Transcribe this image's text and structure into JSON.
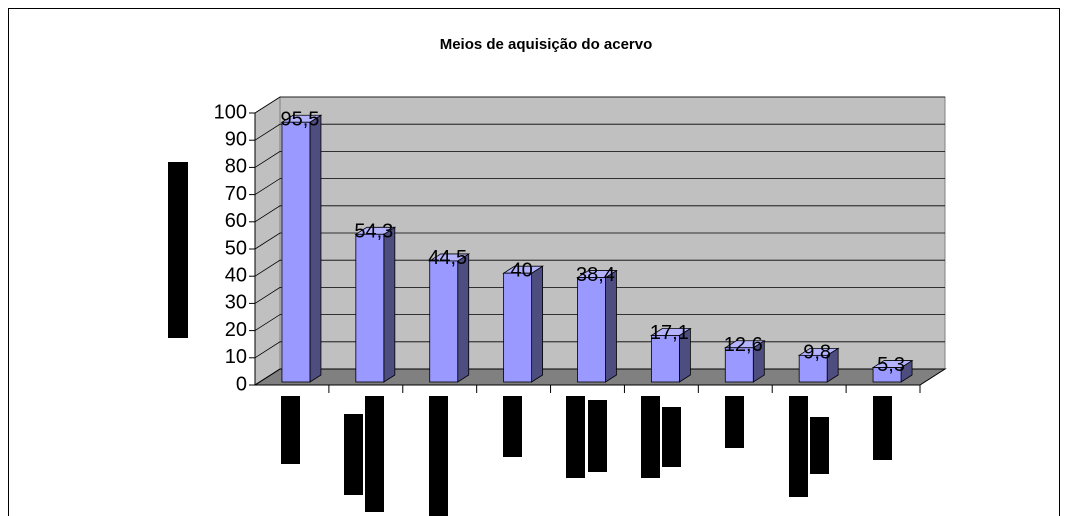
{
  "chart_data": {
    "type": "bar3d",
    "title": "Meios de aquisição do acervo",
    "categories": [
      null,
      null,
      null,
      null,
      null,
      null,
      null,
      null,
      null
    ],
    "values": [
      95.5,
      54.3,
      44.5,
      40,
      38.4,
      17.1,
      12.6,
      9.8,
      5.3
    ],
    "value_labels": [
      "95,5",
      "54,3",
      "44,5",
      "40",
      "38,4",
      "17,1",
      "12,6",
      "9,8",
      "5,3"
    ],
    "color": "#9999ff",
    "ylim": [
      0,
      100
    ],
    "yticks": [
      0,
      10,
      20,
      30,
      40,
      50,
      60,
      70,
      80,
      90,
      100
    ],
    "grid": true
  }
}
